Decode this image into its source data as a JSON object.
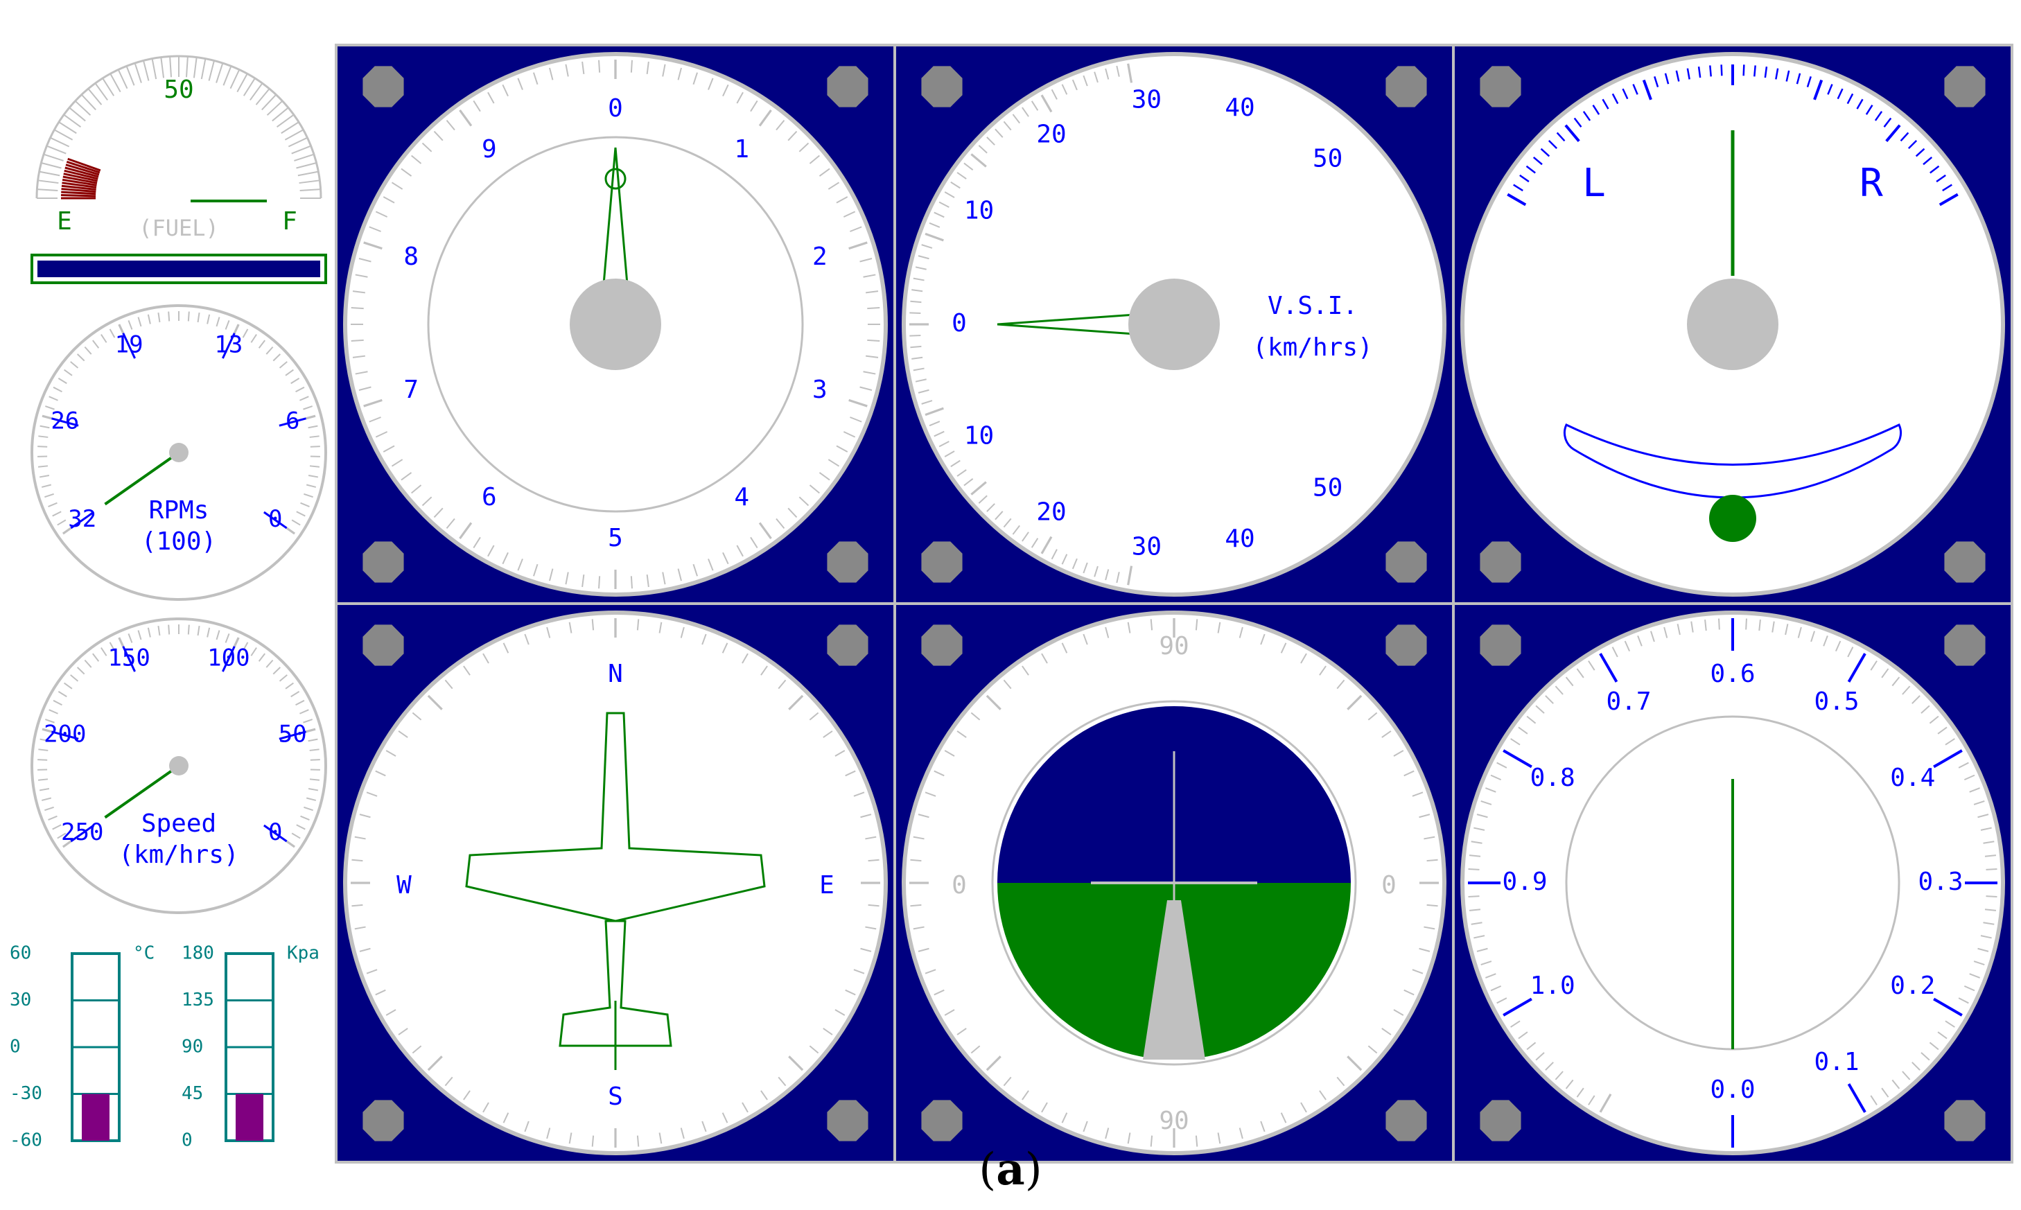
{
  "colors": {
    "panel_bg": "#000080",
    "face": "#ffffff",
    "bezel": "#c0c0c0",
    "scale_blue": "#0000ff",
    "needle_green": "#008000",
    "fuel_red": "#8b0000",
    "gauge_teal": "#008080",
    "bar_purple": "#800080",
    "sky": "#000080",
    "ground": "#008000"
  },
  "fuel": {
    "mid_label": "50",
    "empty_label": "E",
    "full_label": "F",
    "caption": "(FUEL)",
    "level": 0.1
  },
  "rpm": {
    "labels": [
      "0",
      "6",
      "13",
      "19",
      "26",
      "32"
    ],
    "unit_line1": "RPMs",
    "unit_line2": "(100)",
    "value": 32
  },
  "speed": {
    "labels": [
      "0",
      "50",
      "100",
      "150",
      "200",
      "250"
    ],
    "unit_line1": "Speed",
    "unit_line2": "(km/hrs)",
    "value": 250
  },
  "temp": {
    "scale": [
      "60",
      "30",
      "0",
      "-30",
      "-60"
    ],
    "unit": "°C",
    "value": -30
  },
  "pressure": {
    "scale": [
      "180",
      "135",
      "90",
      "45",
      "0"
    ],
    "unit": "Kpa",
    "value": 45
  },
  "altimeter": {
    "labels": [
      "0",
      "1",
      "2",
      "3",
      "4",
      "5",
      "6",
      "7",
      "8",
      "9"
    ]
  },
  "vsi": {
    "up_labels": [
      "0",
      "10",
      "20",
      "30",
      "40",
      "50"
    ],
    "down_labels": [
      "10",
      "20",
      "30",
      "40",
      "50"
    ],
    "title_line1": "V.S.I.",
    "title_line2": "(km/hrs)",
    "value": 0
  },
  "turn": {
    "left_label": "L",
    "right_label": "R"
  },
  "heading": {
    "north": "N",
    "south": "S",
    "east": "E",
    "west": "W",
    "value": 0
  },
  "attitude": {
    "top_label": "90",
    "bottom_label": "90",
    "left_label": "0",
    "right_label": "0"
  },
  "mach": {
    "labels": [
      "0.0",
      "0.1",
      "0.2",
      "0.3",
      "0.4",
      "0.5",
      "0.6",
      "0.7",
      "0.8",
      "0.9",
      "1.0"
    ],
    "value": 0.0
  },
  "caption": {
    "open": "(",
    "letter": "a",
    "close": ")"
  }
}
